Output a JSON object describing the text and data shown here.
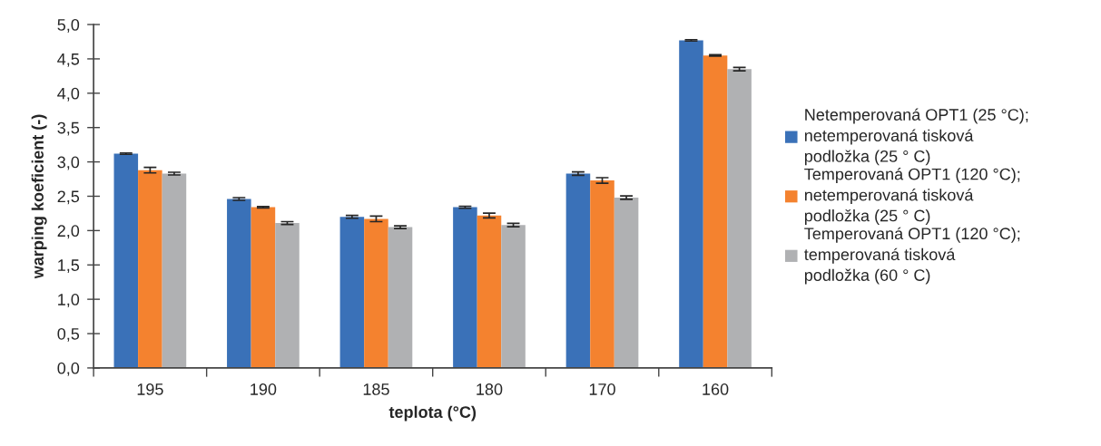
{
  "chart_data": {
    "type": "bar",
    "xlabel": "teplota (°C)",
    "ylabel": "warping koeficient (-)",
    "categories": [
      "195",
      "190",
      "185",
      "180",
      "170",
      "160"
    ],
    "series": [
      {
        "name": "Netemperovaná OPT1 (25 °C);\nnetemperovaná tisková\npodložka (25 ° C)",
        "color": "#3a71b8",
        "values": [
          3.12,
          2.46,
          2.2,
          2.34,
          2.83,
          4.77
        ],
        "errors": [
          0.01,
          0.02,
          0.02,
          0.015,
          0.025,
          0.01
        ]
      },
      {
        "name": "Temperovaná OPT1 (120 °C);\nnetemperovaná tisková\npodložka (25 ° C)",
        "color": "#f4822f",
        "values": [
          2.88,
          2.34,
          2.17,
          2.22,
          2.73,
          4.55
        ],
        "errors": [
          0.04,
          0.01,
          0.04,
          0.035,
          0.04,
          0.01
        ]
      },
      {
        "name": "Temperovaná OPT1 (120 °C);\ntemperovaná tisková\npodložka (60 ° C)",
        "color": "#b0b1b3",
        "values": [
          2.83,
          2.11,
          2.05,
          2.08,
          2.48,
          4.35
        ],
        "errors": [
          0.02,
          0.02,
          0.02,
          0.025,
          0.025,
          0.025
        ]
      }
    ],
    "ylim": [
      0,
      5
    ],
    "yticks": [
      {
        "value": 0,
        "label": "0,0"
      },
      {
        "value": 0.5,
        "label": "0,5"
      },
      {
        "value": 1,
        "label": "1,0"
      },
      {
        "value": 1.5,
        "label": "1,5"
      },
      {
        "value": 2,
        "label": "2,0"
      },
      {
        "value": 2.5,
        "label": "2,5"
      },
      {
        "value": 3,
        "label": "3,0"
      },
      {
        "value": 3.5,
        "label": "3,5"
      },
      {
        "value": 4,
        "label": "4,0"
      },
      {
        "value": 4.5,
        "label": "4,5"
      },
      {
        "value": 5,
        "label": "5,0"
      }
    ],
    "grid": false,
    "legend": "right"
  }
}
